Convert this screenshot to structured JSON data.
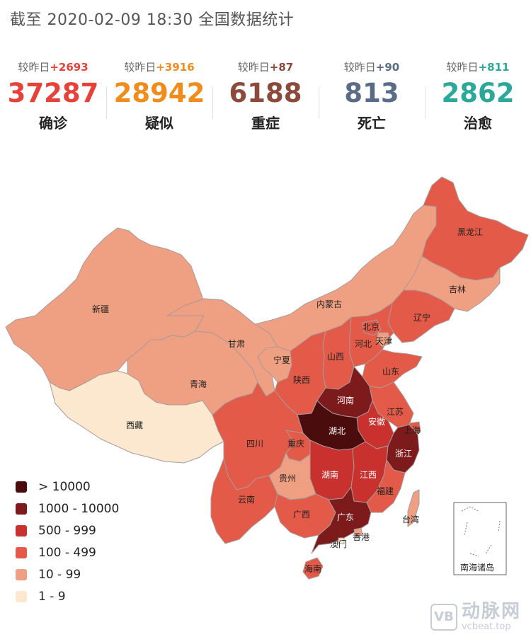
{
  "header": {
    "title": "截至 2020-02-09 18:30 全国数据统计"
  },
  "stats": [
    {
      "prefix": "较昨日",
      "delta": "+2693",
      "value": "37287",
      "label": "确诊",
      "color": "#e8413a"
    },
    {
      "prefix": "较昨日",
      "delta": "+3916",
      "value": "28942",
      "label": "疑似",
      "color": "#f08c1c"
    },
    {
      "prefix": "较昨日",
      "delta": "+87",
      "value": "6188",
      "label": "重症",
      "color": "#8b4a3a"
    },
    {
      "prefix": "较昨日",
      "delta": "+90",
      "value": "813",
      "label": "死亡",
      "color": "#5a6b86"
    },
    {
      "prefix": "较昨日",
      "delta": "+811",
      "value": "2862",
      "label": "治愈",
      "color": "#2aa89a"
    }
  ],
  "legend": [
    {
      "label": "> 10000",
      "color": "#4a0c0c"
    },
    {
      "label": "1000 - 10000",
      "color": "#7d1a1c"
    },
    {
      "label": "500 - 999",
      "color": "#c8312e"
    },
    {
      "label": "100 - 499",
      "color": "#e35a48"
    },
    {
      "label": "10 - 99",
      "color": "#f0a082"
    },
    {
      "label": "1 - 9",
      "color": "#fbe8cf"
    }
  ],
  "provinces": [
    {
      "name": "新疆",
      "level": "10 - 99"
    },
    {
      "name": "西藏",
      "level": "1 - 9"
    },
    {
      "name": "青海",
      "level": "10 - 99"
    },
    {
      "name": "甘肃",
      "level": "10 - 99"
    },
    {
      "name": "内蒙古",
      "level": "10 - 99"
    },
    {
      "name": "宁夏",
      "level": "10 - 99"
    },
    {
      "name": "黑龙江",
      "level": "100 - 499"
    },
    {
      "name": "吉林",
      "level": "10 - 99"
    },
    {
      "name": "辽宁",
      "level": "100 - 499"
    },
    {
      "name": "北京",
      "level": "100 - 499"
    },
    {
      "name": "天津",
      "level": "10 - 99"
    },
    {
      "name": "河北",
      "level": "100 - 499"
    },
    {
      "name": "山西",
      "level": "100 - 499"
    },
    {
      "name": "山东",
      "level": "100 - 499"
    },
    {
      "name": "陕西",
      "level": "100 - 499"
    },
    {
      "name": "河南",
      "level": "1000 - 10000"
    },
    {
      "name": "江苏",
      "level": "100 - 499"
    },
    {
      "name": "安徽",
      "level": "500 - 999"
    },
    {
      "name": "上海",
      "level": "100 - 499"
    },
    {
      "name": "湖北",
      "level": "> 10000"
    },
    {
      "name": "浙江",
      "level": "1000 - 10000"
    },
    {
      "name": "四川",
      "level": "100 - 499"
    },
    {
      "name": "重庆",
      "level": "100 - 499"
    },
    {
      "name": "湖南",
      "level": "500 - 999"
    },
    {
      "name": "江西",
      "level": "500 - 999"
    },
    {
      "name": "福建",
      "level": "100 - 499"
    },
    {
      "name": "贵州",
      "level": "10 - 99"
    },
    {
      "name": "云南",
      "level": "100 - 499"
    },
    {
      "name": "广西",
      "level": "100 - 499"
    },
    {
      "name": "广东",
      "level": "1000 - 10000"
    },
    {
      "name": "香港",
      "level": "10 - 99"
    },
    {
      "name": "澳门",
      "level": "1 - 9"
    },
    {
      "name": "台湾",
      "level": "10 - 99"
    },
    {
      "name": "海南",
      "level": "100 - 499"
    }
  ],
  "inset": {
    "label": "南海诸岛"
  },
  "watermark": {
    "logo": "VB",
    "name": "动脉网",
    "url": "vcbeat.top"
  }
}
